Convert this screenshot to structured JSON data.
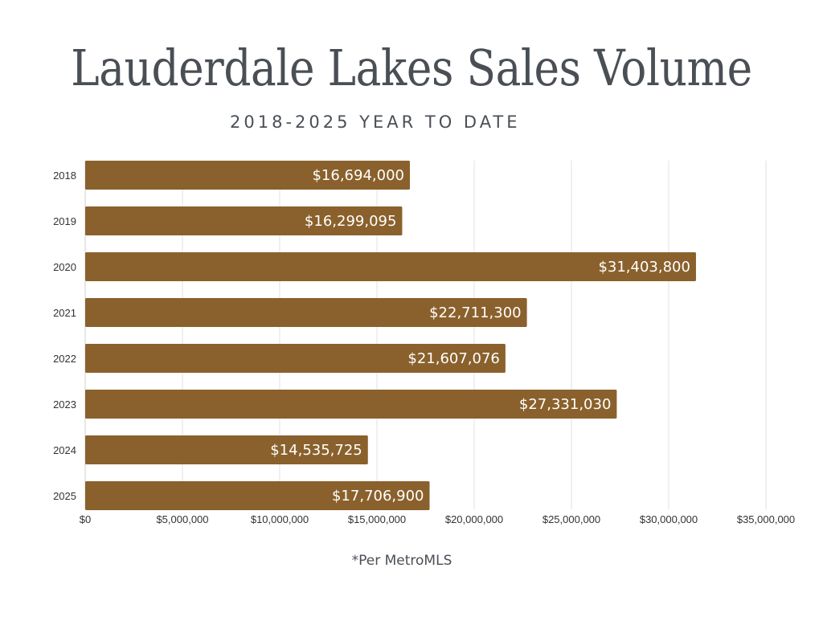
{
  "chart_data": {
    "type": "bar",
    "orientation": "horizontal",
    "title": "Lauderdale Lakes Sales Volume",
    "subtitle": "2018-2025 YEAR TO DATE",
    "footnote": "*Per MetroMLS",
    "categories": [
      "2018",
      "2019",
      "2020",
      "2021",
      "2022",
      "2023",
      "2024",
      "2025"
    ],
    "values": [
      16694000,
      16299095,
      31403800,
      22711300,
      21607076,
      27331030,
      14535725,
      17706900
    ],
    "data_labels": [
      "$16,694,000",
      "$16,299,095",
      "$31,403,800",
      "$22,711,300",
      "$21,607,076",
      "$27,331,030",
      "$14,535,725",
      "$17,706,900"
    ],
    "xlabel": "",
    "ylabel": "",
    "xlim": [
      0,
      35000000
    ],
    "x_ticks": [
      0,
      5000000,
      10000000,
      15000000,
      20000000,
      25000000,
      30000000,
      35000000
    ],
    "x_tick_labels": [
      "$0",
      "$5,000,000",
      "$10,000,000",
      "$15,000,000",
      "$20,000,000",
      "$25,000,000",
      "$30,000,000",
      "$35,000,000"
    ],
    "grid": "vertical",
    "legend": "none",
    "colors": {
      "bar": "#8a612c",
      "text": "#4a4f55",
      "grid": "#e2e2e2",
      "label": "#ffffff"
    }
  }
}
